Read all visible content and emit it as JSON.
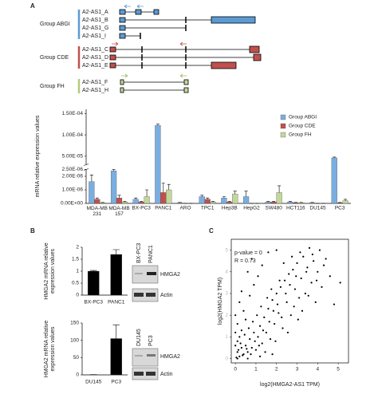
{
  "panel_labels": [
    "A",
    "B",
    "C"
  ],
  "gene_groups": [
    {
      "label": "Group ABGI",
      "color": "#5b9bd5",
      "transcripts": [
        "A2-AS1_A",
        "A2-AS1_B",
        "A2-AS1_G",
        "A2-AS1_I"
      ]
    },
    {
      "label": "Group CDE",
      "color": "#c0504d",
      "transcripts": [
        "A2-AS1_C",
        "A2-AS1_D",
        "A2-AS1_E"
      ]
    },
    {
      "label": "Group FH",
      "color": "#b5c97a",
      "transcripts": [
        "A2-AS1_F",
        "A2-AS1_H"
      ]
    }
  ],
  "blots": [
    {
      "cells": [
        "BX-PC3",
        "PANC1"
      ],
      "bands": [
        "HMGA2",
        "Actin"
      ]
    },
    {
      "cells": [
        "DU145",
        "PC3"
      ],
      "bands": [
        "HMGA2",
        "Actin"
      ]
    }
  ],
  "chart_data": [
    {
      "type": "bar",
      "ylabel": [
        "mRNA relative expression values"
      ],
      "categories": [
        "MDA-MB 231",
        "MDA-MB 157",
        "BX-PC3",
        "PANC1",
        "ARO",
        "TPC1",
        "Hep3B",
        "HepG2",
        "SW480",
        "HCT116",
        "DU145",
        "PC3"
      ],
      "series": [
        {
          "name": "Group ABGI",
          "color": "#7aaee0",
          "values": [
            1.6e-06,
            2.4e-06,
            3e-07,
            0.000122,
            5e-08,
            5e-07,
            4e-07,
            5e-07,
            1e-07,
            1e-07,
            5e-08,
            4.6e-05
          ],
          "errors": [
            5e-07,
            4e-07,
            1e-07,
            3e-06,
            2e-08,
            1e-07,
            1e-07,
            4e-07,
            5e-08,
            5e-08,
            2e-08,
            2e-06
          ]
        },
        {
          "name": "Group CDE",
          "color": "#c0504d",
          "values": [
            3e-07,
            4e-07,
            1e-07,
            8e-07,
            0,
            3e-07,
            1e-07,
            0,
            1e-07,
            5e-08,
            0,
            5e-08
          ],
          "errors": [
            1e-07,
            2e-07,
            5e-08,
            7e-07,
            0,
            1e-07,
            5e-08,
            0,
            5e-08,
            2e-08,
            0,
            2e-08
          ]
        },
        {
          "name": "Group FH",
          "color": "#c3d69b",
          "values": [
            5e-08,
            1e-07,
            5e-07,
            1e-06,
            0,
            1e-07,
            7e-07,
            0,
            8e-07,
            5e-08,
            0,
            2e-07
          ],
          "errors": [
            2e-08,
            5e-08,
            5e-07,
            4e-07,
            0,
            5e-08,
            2e-07,
            0,
            5e-07,
            2e-08,
            0,
            1e-07
          ]
        }
      ],
      "ylim": [
        0,
        0.00016
      ],
      "ybreak": [
        2.5e-06,
        3e-05
      ],
      "yticks": [
        {
          "value": 0,
          "label": "0.00E+00"
        },
        {
          "value": 1e-06,
          "label": "1.00E-06"
        },
        {
          "value": 2e-06,
          "label": "2.00E-06"
        },
        {
          "value": 2.5e-06,
          "label": "2.50E-06"
        },
        {
          "value": 5e-05,
          "label": "5.00E-05"
        },
        {
          "value": 0.0001,
          "label": "1.00E-04"
        },
        {
          "value": 0.00015,
          "label": "1.50E-04"
        }
      ],
      "legend": "top-right"
    },
    {
      "type": "bar",
      "ylabel": [
        "HMGA2 mRNA relative",
        "expression values"
      ],
      "categories": [
        "BX-PC3",
        "PANC1"
      ],
      "values": [
        1,
        1.7
      ],
      "errors": [
        0.03,
        0.2
      ],
      "color": "#000000",
      "ylim": [
        0,
        2
      ],
      "yticks": [
        0,
        0.5,
        1,
        1.5,
        2
      ]
    },
    {
      "type": "bar",
      "ylabel": [
        "HMGA2 mRNA relative",
        "expression values"
      ],
      "categories": [
        "DU145",
        "PC3"
      ],
      "values": [
        0.5,
        105
      ],
      "errors": [
        0.2,
        40
      ],
      "color": "#000000",
      "ylim": [
        0,
        150
      ],
      "yticks": [
        0,
        50,
        100,
        150
      ]
    },
    {
      "type": "scatter",
      "xlabel": "log2(HMGA2-AS1 TPM)",
      "ylabel": [
        "log2(HMGA2 TPM)"
      ],
      "annotations": [
        "p-value = 0",
        "R = 0.73"
      ],
      "color": "#000000",
      "x": [
        0.1,
        0.2,
        0.3,
        0.1,
        0.4,
        0.5,
        0.2,
        0.6,
        0.7,
        0.3,
        0.8,
        0.9,
        0.1,
        1.0,
        1.1,
        0.5,
        1.2,
        0.4,
        1.3,
        1.4,
        0.2,
        1.5,
        1.6,
        0.7,
        1.7,
        1.8,
        0.3,
        1.9,
        2.0,
        0.9,
        2.1,
        2.2,
        1.1,
        2.3,
        2.4,
        0.6,
        2.5,
        2.6,
        1.3,
        2.7,
        2.8,
        0.8,
        2.9,
        3.0,
        1.6,
        3.1,
        3.2,
        2.0,
        3.3,
        3.4,
        3.5,
        3.6,
        3.7,
        3.8,
        3.9,
        4.0,
        4.1,
        4.2,
        4.4,
        4.6,
        4.8,
        5.1,
        0.05,
        0.15,
        0.25,
        0.35,
        0.45,
        0.55,
        0.65,
        0.75,
        0.85,
        0.95,
        1.05,
        1.15,
        1.25,
        1.35,
        1.45,
        1.55,
        1.65,
        1.75,
        1.85,
        1.95,
        2.05,
        2.15,
        2.25,
        2.35,
        2.45,
        2.55,
        2.65,
        2.75,
        2.85,
        2.95,
        3.05,
        3.15,
        3.25,
        3.45,
        3.55,
        3.75,
        3.95,
        4.3,
        0,
        0,
        0,
        0.1,
        0.6,
        1.2,
        1.8
      ],
      "values": [
        0.3,
        0.1,
        0.5,
        0.8,
        0.2,
        0.6,
        1.0,
        0.3,
        0.9,
        1.3,
        0.5,
        1.2,
        1.6,
        0.4,
        1.0,
        1.8,
        1.5,
        2.2,
        0.7,
        1.9,
        2.6,
        1.2,
        2.3,
        2.9,
        0.9,
        2.7,
        3.1,
        1.6,
        3.0,
        3.4,
        2.1,
        3.3,
        3.8,
        1.4,
        3.6,
        4.0,
        2.6,
        3.9,
        4.3,
        2.0,
        4.1,
        4.6,
        3.2,
        4.4,
        4.9,
        2.8,
        3.7,
        5.0,
        4.7,
        3.0,
        4.2,
        5.1,
        3.5,
        4.5,
        2.6,
        4.0,
        5.0,
        3.3,
        4.6,
        3.8,
        2.5,
        3.5,
        0.05,
        0.4,
        0.7,
        0.15,
        1.1,
        0.45,
        1.4,
        0.2,
        1.7,
        0.8,
        2.0,
        0.6,
        2.4,
        1.3,
        0.3,
        2.8,
        1.7,
        3.2,
        2.2,
        0.8,
        2.5,
        3.6,
        1.9,
        4.4,
        3.0,
        1.2,
        3.4,
        4.7,
        2.4,
        3.8,
        1.8,
        4.9,
        2.2,
        4.0,
        2.9,
        4.8,
        3.6,
        4.3,
        0.6,
        1.2,
        2.0,
        0.0,
        0.0,
        0.1,
        0.2
      ],
      "xlim": [
        -0.2,
        5.5
      ],
      "xticks": [
        0,
        1,
        2,
        3,
        4,
        5
      ],
      "ylim": [
        -0.2,
        5.5
      ],
      "yticks": [
        0,
        1,
        2,
        3,
        4,
        5
      ]
    }
  ]
}
